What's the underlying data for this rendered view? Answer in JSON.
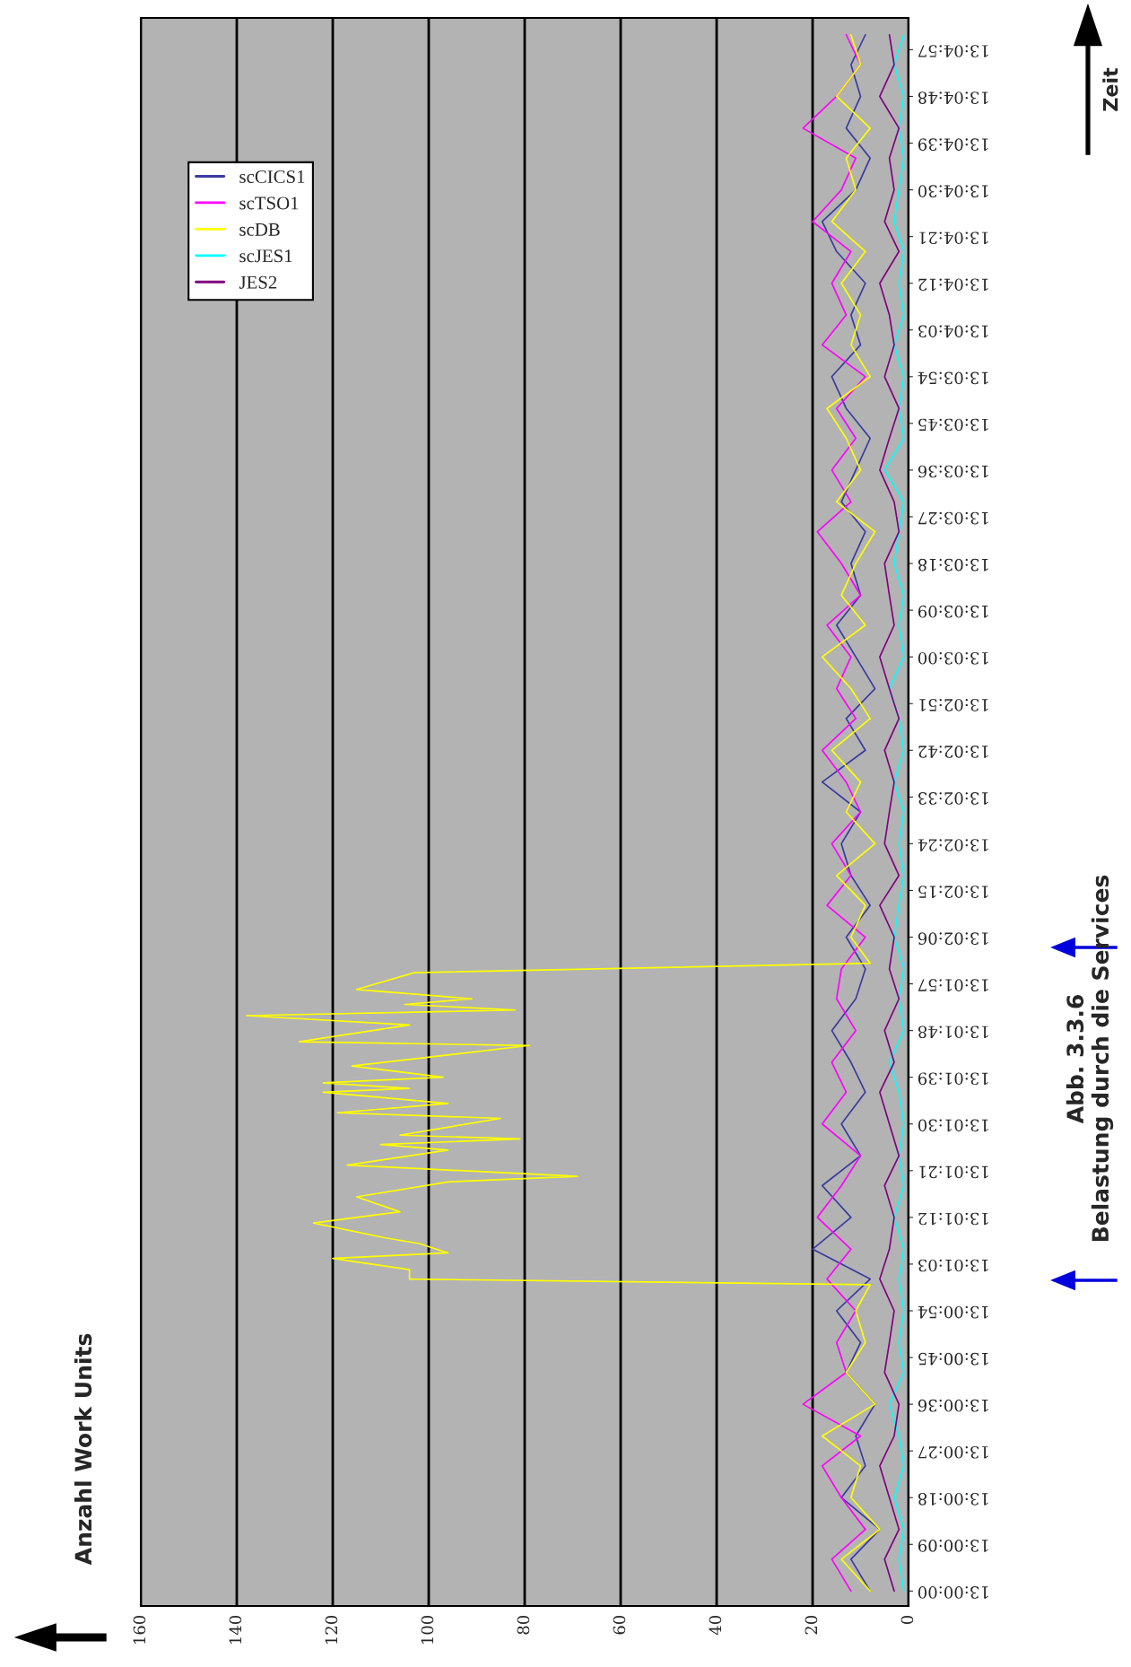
{
  "chart_data": {
    "type": "line",
    "title": "Abb. 3.3.6\nBelastung durch die Services",
    "ylabel": "Anzahl Work Units",
    "annotations": [
      "Zeit"
    ],
    "x": [
      13.0,
      13.0017,
      13.0033,
      13.005,
      13.0067,
      13.0083,
      13.01,
      13.0117,
      13.0133,
      13.015,
      13.0167,
      13.0183,
      13.02,
      13.0217,
      13.0233,
      13.025,
      13.0267,
      13.0283,
      13.03,
      13.0317,
      13.0333,
      13.035,
      13.0367,
      13.0383,
      13.04,
      13.0417,
      13.0433,
      13.045,
      13.0467,
      13.0483,
      13.05,
      13.0517,
      13.0533,
      13.055,
      13.0567,
      13.0583,
      13.06,
      13.0617,
      13.0633,
      13.065,
      13.0667,
      13.0683,
      13.07,
      13.0717,
      13.0733,
      13.075,
      13.0767,
      13.0783,
      13.08,
      13.0817,
      13.0833
    ],
    "series": [
      {
        "name": "scCICS1",
        "color": "#3a3aa0",
        "values": [
          8,
          12,
          6,
          14,
          9,
          11,
          7,
          13,
          10,
          15,
          8,
          20,
          12,
          18,
          10,
          14,
          9,
          12,
          16,
          11,
          9,
          13,
          8,
          12,
          14,
          10,
          18,
          9,
          13,
          7,
          11,
          15,
          10,
          12,
          9,
          14,
          11,
          8,
          13,
          16,
          10,
          12,
          9,
          15,
          18,
          11,
          8,
          13,
          10,
          12,
          9
        ]
      },
      {
        "name": "scTSO1",
        "color": "#ff00ff",
        "values": [
          12,
          16,
          9,
          14,
          18,
          10,
          22,
          13,
          15,
          11,
          17,
          12,
          19,
          14,
          10,
          18,
          13,
          16,
          11,
          15,
          14,
          9,
          17,
          12,
          16,
          10,
          13,
          18,
          11,
          15,
          12,
          17,
          10,
          14,
          19,
          12,
          16,
          11,
          15,
          9,
          18,
          13,
          16,
          12,
          20,
          14,
          11,
          22,
          15,
          10,
          13
        ]
      },
      {
        "name": "scDB",
        "color": "#ffff00",
        "x": [
          13.0,
          13.0017,
          13.0033,
          13.005,
          13.0067,
          13.0083,
          13.01,
          13.0117,
          13.0133,
          13.015,
          13.0164,
          13.0167,
          13.0172,
          13.0178,
          13.0181,
          13.0186,
          13.0189,
          13.0197,
          13.0203,
          13.0211,
          13.0219,
          13.0222,
          13.0228,
          13.0236,
          13.0239,
          13.0242,
          13.0244,
          13.0253,
          13.0256,
          13.0261,
          13.0267,
          13.0269,
          13.0272,
          13.0275,
          13.0281,
          13.0292,
          13.0294,
          13.0303,
          13.0308,
          13.0311,
          13.0314,
          13.0317,
          13.0322,
          13.0331,
          13.0336,
          13.035,
          13.0367,
          13.0383,
          13.04,
          13.0417,
          13.0433,
          13.045,
          13.0467,
          13.0483,
          13.05,
          13.0517,
          13.0533,
          13.055,
          13.0567,
          13.0583,
          13.06,
          13.0617,
          13.0633,
          13.065,
          13.0667,
          13.0683,
          13.07,
          13.0717,
          13.0733,
          13.075,
          13.0767,
          13.0783,
          13.08,
          13.0817,
          13.0833
        ],
        "values": [
          8,
          14,
          6,
          12,
          10,
          18,
          7,
          13,
          9,
          11,
          8,
          104,
          104,
          120,
          96,
          102,
          109,
          124,
          106,
          115,
          96,
          69,
          117,
          96,
          110,
          81,
          106,
          85,
          119,
          96,
          122,
          104,
          122,
          97,
          116,
          79,
          127,
          104,
          138,
          82,
          105,
          91,
          115,
          103,
          8,
          12,
          9,
          15,
          7,
          13,
          10,
          16,
          8,
          12,
          18,
          9,
          14,
          11,
          7,
          15,
          10,
          13,
          17,
          8,
          12,
          10,
          14,
          9,
          16,
          11,
          13,
          8,
          15,
          10,
          12
        ]
      },
      {
        "name": "scJES1",
        "color": "#00ffff",
        "values": [
          1,
          2,
          1,
          3,
          1,
          2,
          4,
          1,
          2,
          1,
          2,
          1,
          3,
          1,
          2,
          1,
          2,
          4,
          1,
          2,
          1,
          3,
          2,
          1,
          2,
          1,
          3,
          1,
          2,
          4,
          1,
          2,
          1,
          3,
          2,
          1,
          5,
          1,
          2,
          1,
          3,
          1,
          2,
          1,
          3,
          2,
          1,
          2,
          1,
          3,
          1
        ]
      },
      {
        "name": "JES2",
        "color": "#800080",
        "values": [
          3,
          5,
          2,
          4,
          6,
          3,
          2,
          5,
          4,
          3,
          6,
          4,
          3,
          5,
          2,
          4,
          6,
          3,
          5,
          2,
          4,
          3,
          6,
          2,
          5,
          4,
          3,
          5,
          2,
          4,
          6,
          3,
          4,
          5,
          2,
          3,
          6,
          4,
          2,
          5,
          3,
          4,
          6,
          2,
          5,
          3,
          4,
          2,
          6,
          3,
          4
        ]
      }
    ],
    "orientation": "horizontal",
    "ylim": [
      12.9992,
      13.0842
    ],
    "yticks": [
      {
        "value": 13.0,
        "label": "13:00:00"
      },
      {
        "value": 13.0025,
        "label": "13:00:09"
      },
      {
        "value": 13.005,
        "label": "13:00:18"
      },
      {
        "value": 13.0075,
        "label": "13:00:27"
      },
      {
        "value": 13.01,
        "label": "13:00:36"
      },
      {
        "value": 13.0125,
        "label": "13:00:45"
      },
      {
        "value": 13.015,
        "label": "13:00:54"
      },
      {
        "value": 13.0175,
        "label": "13:01:03"
      },
      {
        "value": 13.02,
        "label": "13:01:12"
      },
      {
        "value": 13.0225,
        "label": "13:01:21"
      },
      {
        "value": 13.025,
        "label": "13:01:30"
      },
      {
        "value": 13.0275,
        "label": "13:01:39"
      },
      {
        "value": 13.03,
        "label": "13:01:48"
      },
      {
        "value": 13.0325,
        "label": "13:01:57"
      },
      {
        "value": 13.035,
        "label": "13:02:06"
      },
      {
        "value": 13.0375,
        "label": "13:02:15"
      },
      {
        "value": 13.04,
        "label": "13:02:24"
      },
      {
        "value": 13.0425,
        "label": "13:02:33"
      },
      {
        "value": 13.045,
        "label": "13:02:42"
      },
      {
        "value": 13.0475,
        "label": "13:02:51"
      },
      {
        "value": 13.05,
        "label": "13:03:00"
      },
      {
        "value": 13.0525,
        "label": "13:03:09"
      },
      {
        "value": 13.055,
        "label": "13:03:18"
      },
      {
        "value": 13.0575,
        "label": "13:03:27"
      },
      {
        "value": 13.06,
        "label": "13:03:36"
      },
      {
        "value": 13.0625,
        "label": "13:03:45"
      },
      {
        "value": 13.065,
        "label": "13:03:54"
      },
      {
        "value": 13.0675,
        "label": "13:04:03"
      },
      {
        "value": 13.07,
        "label": "13:04:12"
      },
      {
        "value": 13.0725,
        "label": "13:04:21"
      },
      {
        "value": 13.075,
        "label": "13:04:30"
      },
      {
        "value": 13.0775,
        "label": "13:04:39"
      },
      {
        "value": 13.08,
        "label": "13:04:48"
      },
      {
        "value": 13.0825,
        "label": "13:04:57"
      }
    ],
    "xlim": [
      160,
      0
    ],
    "xticks": [
      0,
      20,
      40,
      60,
      80,
      100,
      120,
      140,
      160
    ],
    "grid": "x",
    "legend": "top left",
    "marker": "none",
    "line_style": "solid"
  }
}
